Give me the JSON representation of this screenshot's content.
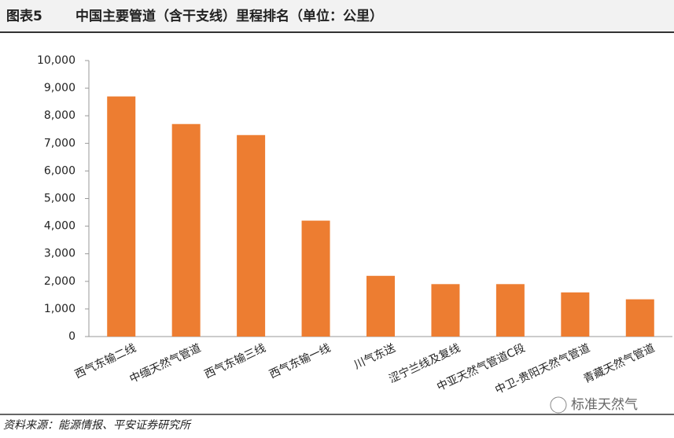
{
  "header": {
    "figure": "图表5",
    "title": "中国主要管道（含干支线）里程排名（单位：公里）"
  },
  "chart_data": {
    "type": "bar",
    "categories": [
      "西气东输二线",
      "中缅天然气管道",
      "西气东输三线",
      "西气东输一线",
      "川气东送",
      "涩宁兰线及复线",
      "中亚天然气管道C段",
      "中卫-贵阳天然气管道",
      "青藏天然气管道"
    ],
    "values": [
      8700,
      7700,
      7300,
      4200,
      2200,
      1900,
      1900,
      1600,
      1350
    ],
    "color": "#ed7d31",
    "ylim": [
      0,
      10000
    ],
    "yticks": [
      0,
      {
        "value": 1000,
        "label": "1,000"
      },
      {
        "value": 2000,
        "label": "2,000"
      },
      {
        "value": 3000,
        "label": "3,000"
      },
      {
        "value": 4000,
        "label": "4,000"
      },
      {
        "value": 5000,
        "label": "5,000"
      },
      {
        "value": 6000,
        "label": "6,000"
      },
      {
        "value": 7000,
        "label": "7,000"
      },
      {
        "value": 8000,
        "label": "8,000"
      },
      {
        "value": 9000,
        "label": "9,000"
      },
      {
        "value": 10000,
        "label": "10,000"
      }
    ],
    "grid": false
  },
  "footer": {
    "source": "资料来源：能源情报、平安证券研究所",
    "logo": "标准天然气"
  }
}
